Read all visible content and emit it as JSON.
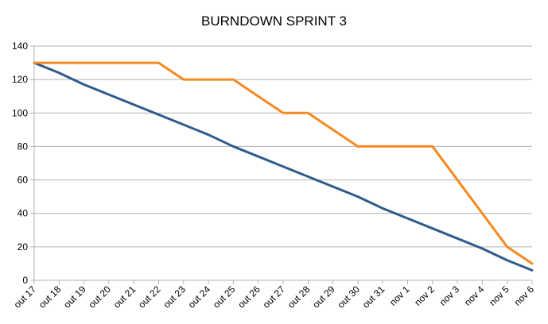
{
  "chart_data": {
    "type": "line",
    "title": "BURNDOWN SPRINT 3",
    "xlabel": "",
    "ylabel": "",
    "categories": [
      "out 17",
      "out 18",
      "out 19",
      "out 20",
      "out 21",
      "out 22",
      "out 23",
      "out 24",
      "out 25",
      "out 26",
      "out 27",
      "out 28",
      "out 29",
      "out 30",
      "out 31",
      "nov 1",
      "nov 2",
      "nov 3",
      "nov 4",
      "nov 5",
      "nov 6"
    ],
    "ylim": [
      0,
      140
    ],
    "yticks": [
      "0",
      "20",
      "40",
      "60",
      "80",
      "100",
      "120",
      "140"
    ],
    "grid": true,
    "legend": "none",
    "series": [
      {
        "color": "#2E5C8A",
        "values": [
          130,
          124,
          117,
          111,
          105,
          99,
          93,
          87,
          80,
          74,
          68,
          62,
          56,
          50,
          43,
          37,
          31,
          25,
          19,
          12,
          6
        ]
      },
      {
        "color": "#F5891F",
        "values": [
          130,
          130,
          130,
          130,
          130,
          130,
          120,
          120,
          120,
          110,
          100,
          100,
          90,
          80,
          80,
          80,
          80,
          60,
          40,
          20,
          10
        ]
      }
    ]
  }
}
